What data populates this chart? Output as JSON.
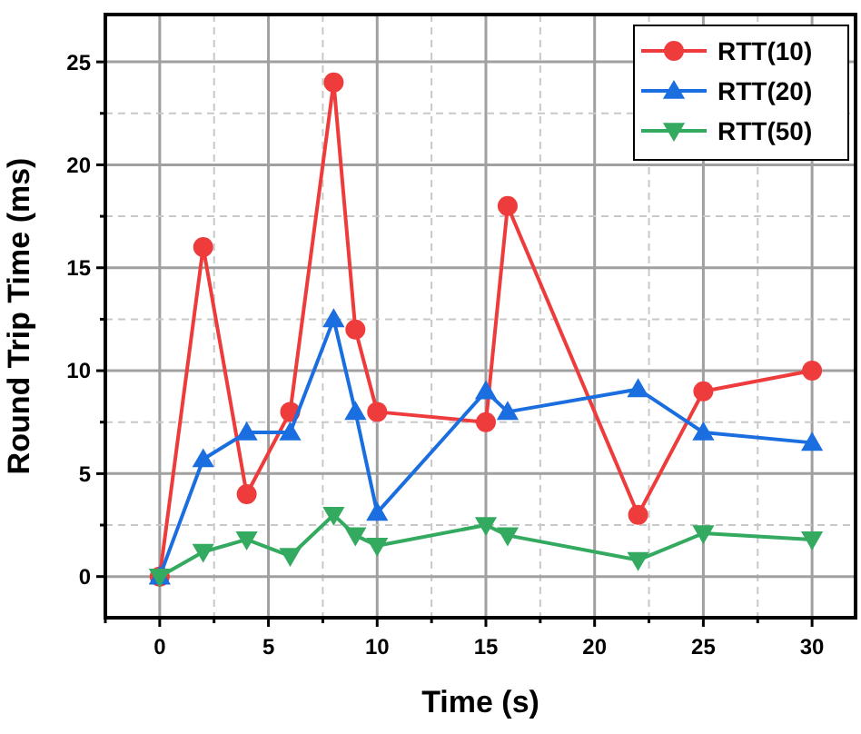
{
  "chart_data": {
    "type": "line",
    "xlabel": "Time (s)",
    "ylabel": "Round Trip Time (ms)",
    "xlim": [
      -2.5,
      32
    ],
    "ylim": [
      -2,
      27.3
    ],
    "xticks": [
      {
        "value": -2.5,
        "label": null
      },
      0,
      {
        "value": 2.5,
        "label": null
      },
      5,
      {
        "value": 7.5,
        "label": null
      },
      10,
      {
        "value": 12.5,
        "label": null
      },
      15,
      {
        "value": 17.5,
        "label": null
      },
      20,
      {
        "value": 22.5,
        "label": null
      },
      25,
      {
        "value": 27.5,
        "label": null
      },
      30
    ],
    "yticks": [
      0,
      {
        "value": 2.5,
        "label": null
      },
      5,
      {
        "value": 7.5,
        "label": null
      },
      10,
      {
        "value": 12.5,
        "label": null
      },
      15,
      {
        "value": 17.5,
        "label": null
      },
      20,
      {
        "value": 22.5,
        "label": null
      },
      25
    ],
    "x": [
      0,
      2,
      4,
      6,
      8,
      9,
      10,
      15,
      16,
      22,
      25,
      30
    ],
    "grid": true,
    "legend": "top right",
    "line_style": "solid",
    "series": [
      {
        "name": "RTT(10)",
        "color": "#ee3b3b",
        "marker": "circle",
        "values": [
          0,
          16,
          4,
          8,
          24,
          12,
          8,
          7.5,
          18,
          3,
          9,
          10
        ]
      },
      {
        "name": "RTT(20)",
        "color": "#1a6ee0",
        "marker": "triangle",
        "values": [
          0,
          5.7,
          7,
          7,
          12.5,
          8,
          3.1,
          9,
          8,
          9.1,
          7,
          6.5
        ]
      },
      {
        "name": "RTT(50)",
        "color": "#33aa60",
        "marker": "triangle-down",
        "values": [
          0,
          1.2,
          1.8,
          1,
          3,
          2,
          1.5,
          2.5,
          2,
          0.8,
          2.1,
          1.8
        ]
      }
    ]
  }
}
